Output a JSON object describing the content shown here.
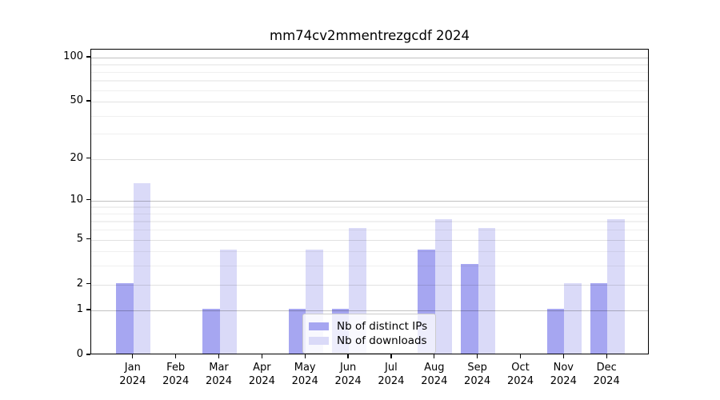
{
  "chart_data": {
    "type": "bar",
    "title": "mm74cv2mmentrezgcdf 2024",
    "year": "2024",
    "categories": [
      "Jan",
      "Feb",
      "Mar",
      "Apr",
      "May",
      "Jun",
      "Jul",
      "Aug",
      "Sep",
      "Oct",
      "Nov",
      "Dec"
    ],
    "series": [
      {
        "name": "Nb of distinct IPs",
        "color": "#a6a6f1",
        "values": [
          2,
          0,
          1,
          0,
          1,
          1,
          0,
          4,
          3,
          0,
          1,
          2
        ]
      },
      {
        "name": "Nb of downloads",
        "color": "#dadaf8",
        "values": [
          13,
          0,
          4,
          0,
          4,
          6,
          0,
          7,
          6,
          0,
          2,
          7
        ]
      }
    ],
    "y_axis": {
      "scale": "log1p",
      "ticks": [
        0,
        1,
        2,
        5,
        10,
        20,
        50,
        100
      ],
      "minor_ticks": [
        3,
        4,
        6,
        7,
        8,
        9,
        30,
        40,
        60,
        70,
        80,
        90
      ],
      "decade_ticks": [
        1,
        10,
        100
      ],
      "max": 113.4
    },
    "x_axis": {
      "label_line2": "2024"
    },
    "legend": {
      "position": "lower center"
    },
    "grid": true,
    "colors": {
      "axis": "#000000",
      "grid_major": "#c3c3c3",
      "grid_minor": "#f0f0f0",
      "background": "#ffffff"
    }
  }
}
